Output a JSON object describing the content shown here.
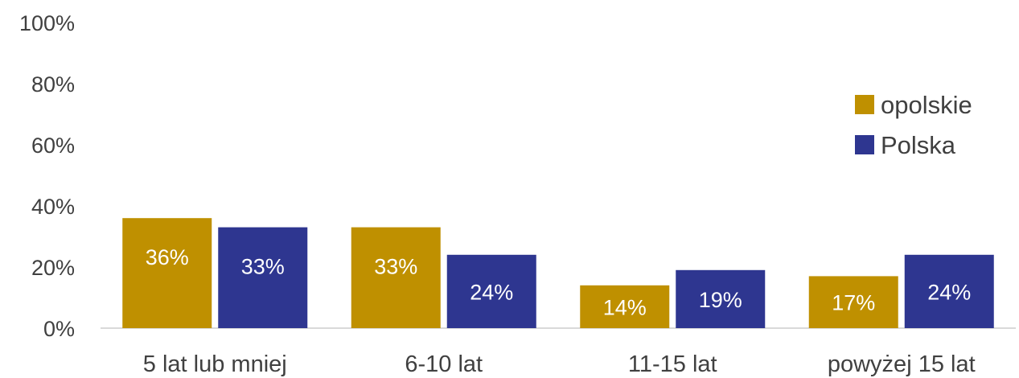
{
  "chart_data": {
    "type": "bar",
    "categories": [
      "5 lat lub mniej",
      "6-10 lat",
      "11-15 lat",
      "powyżej 15 lat"
    ],
    "series": [
      {
        "name": "opolskie",
        "values": [
          36,
          33,
          14,
          17
        ],
        "labels": [
          "36%",
          "33%",
          "14%",
          "17%"
        ],
        "color": "#BF9000"
      },
      {
        "name": "Polska",
        "values": [
          33,
          24,
          19,
          24
        ],
        "labels": [
          "33%",
          "24%",
          "19%",
          "24%"
        ],
        "color": "#2E3690"
      }
    ],
    "yticks": [
      "0%",
      "20%",
      "40%",
      "60%",
      "80%",
      "100%"
    ],
    "ylim": [
      0,
      100
    ],
    "grid": false,
    "legend_position": "right",
    "title": "",
    "xlabel": "",
    "ylabel": ""
  }
}
